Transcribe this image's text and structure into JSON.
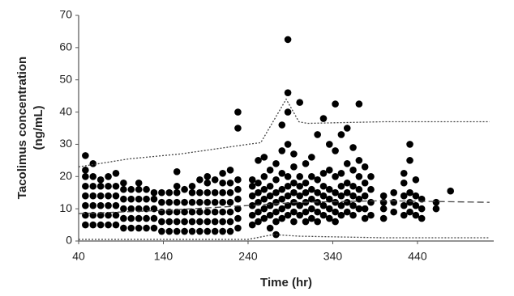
{
  "chart_data": {
    "type": "scatter",
    "xlabel": "Time (hr)",
    "ylabel": [
      "Tacolimus concentration",
      "(ng/mL)"
    ],
    "xlim": [
      40,
      530
    ],
    "ylim": [
      0,
      70
    ],
    "xticks": [
      40,
      140,
      240,
      340,
      440
    ],
    "yticks": [
      0,
      10,
      20,
      30,
      40,
      50,
      60,
      70
    ],
    "color": "#000000",
    "points": [
      {
        "x": 48,
        "y": 5
      },
      {
        "x": 48,
        "y": 8
      },
      {
        "x": 48,
        "y": 11
      },
      {
        "x": 48,
        "y": 14
      },
      {
        "x": 48,
        "y": 17
      },
      {
        "x": 48,
        "y": 20
      },
      {
        "x": 48,
        "y": 22
      },
      {
        "x": 48,
        "y": 26.5
      },
      {
        "x": 57,
        "y": 5
      },
      {
        "x": 57,
        "y": 8
      },
      {
        "x": 57,
        "y": 11
      },
      {
        "x": 57,
        "y": 14
      },
      {
        "x": 57,
        "y": 17
      },
      {
        "x": 57,
        "y": 20
      },
      {
        "x": 57,
        "y": 24
      },
      {
        "x": 66,
        "y": 5
      },
      {
        "x": 66,
        "y": 8
      },
      {
        "x": 66,
        "y": 11
      },
      {
        "x": 66,
        "y": 14
      },
      {
        "x": 66,
        "y": 17
      },
      {
        "x": 66,
        "y": 19
      },
      {
        "x": 75,
        "y": 5
      },
      {
        "x": 75,
        "y": 8
      },
      {
        "x": 75,
        "y": 11
      },
      {
        "x": 75,
        "y": 14
      },
      {
        "x": 75,
        "y": 17
      },
      {
        "x": 75,
        "y": 20
      },
      {
        "x": 84,
        "y": 5
      },
      {
        "x": 84,
        "y": 8
      },
      {
        "x": 84,
        "y": 11
      },
      {
        "x": 84,
        "y": 14
      },
      {
        "x": 84,
        "y": 17
      },
      {
        "x": 84,
        "y": 21
      },
      {
        "x": 93,
        "y": 4
      },
      {
        "x": 93,
        "y": 7
      },
      {
        "x": 93,
        "y": 10
      },
      {
        "x": 93,
        "y": 13
      },
      {
        "x": 93,
        "y": 16
      },
      {
        "x": 93,
        "y": 18
      },
      {
        "x": 102,
        "y": 4
      },
      {
        "x": 102,
        "y": 7
      },
      {
        "x": 102,
        "y": 10
      },
      {
        "x": 102,
        "y": 13
      },
      {
        "x": 102,
        "y": 16
      },
      {
        "x": 111,
        "y": 4
      },
      {
        "x": 111,
        "y": 7
      },
      {
        "x": 111,
        "y": 10
      },
      {
        "x": 111,
        "y": 13
      },
      {
        "x": 111,
        "y": 16
      },
      {
        "x": 111,
        "y": 18
      },
      {
        "x": 120,
        "y": 4
      },
      {
        "x": 120,
        "y": 7
      },
      {
        "x": 120,
        "y": 10
      },
      {
        "x": 120,
        "y": 13
      },
      {
        "x": 120,
        "y": 16
      },
      {
        "x": 129,
        "y": 4
      },
      {
        "x": 129,
        "y": 7
      },
      {
        "x": 129,
        "y": 10
      },
      {
        "x": 129,
        "y": 13
      },
      {
        "x": 129,
        "y": 15
      },
      {
        "x": 138,
        "y": 3
      },
      {
        "x": 138,
        "y": 6
      },
      {
        "x": 138,
        "y": 9
      },
      {
        "x": 138,
        "y": 12
      },
      {
        "x": 138,
        "y": 15
      },
      {
        "x": 147,
        "y": 3
      },
      {
        "x": 147,
        "y": 6
      },
      {
        "x": 147,
        "y": 9
      },
      {
        "x": 147,
        "y": 12
      },
      {
        "x": 147,
        "y": 15
      },
      {
        "x": 156,
        "y": 3
      },
      {
        "x": 156,
        "y": 6
      },
      {
        "x": 156,
        "y": 9
      },
      {
        "x": 156,
        "y": 12
      },
      {
        "x": 156,
        "y": 15
      },
      {
        "x": 156,
        "y": 17
      },
      {
        "x": 156,
        "y": 21.5
      },
      {
        "x": 165,
        "y": 3
      },
      {
        "x": 165,
        "y": 6
      },
      {
        "x": 165,
        "y": 9
      },
      {
        "x": 165,
        "y": 12
      },
      {
        "x": 165,
        "y": 16
      },
      {
        "x": 174,
        "y": 3
      },
      {
        "x": 174,
        "y": 6
      },
      {
        "x": 174,
        "y": 9
      },
      {
        "x": 174,
        "y": 12
      },
      {
        "x": 174,
        "y": 15
      },
      {
        "x": 174,
        "y": 17
      },
      {
        "x": 183,
        "y": 3
      },
      {
        "x": 183,
        "y": 6
      },
      {
        "x": 183,
        "y": 9
      },
      {
        "x": 183,
        "y": 12
      },
      {
        "x": 183,
        "y": 15
      },
      {
        "x": 183,
        "y": 19
      },
      {
        "x": 192,
        "y": 3
      },
      {
        "x": 192,
        "y": 6
      },
      {
        "x": 192,
        "y": 9
      },
      {
        "x": 192,
        "y": 12
      },
      {
        "x": 192,
        "y": 15
      },
      {
        "x": 192,
        "y": 18
      },
      {
        "x": 192,
        "y": 20
      },
      {
        "x": 201,
        "y": 3
      },
      {
        "x": 201,
        "y": 6
      },
      {
        "x": 201,
        "y": 9
      },
      {
        "x": 201,
        "y": 12
      },
      {
        "x": 201,
        "y": 15
      },
      {
        "x": 201,
        "y": 19
      },
      {
        "x": 210,
        "y": 3
      },
      {
        "x": 210,
        "y": 6
      },
      {
        "x": 210,
        "y": 9
      },
      {
        "x": 210,
        "y": 12
      },
      {
        "x": 210,
        "y": 15
      },
      {
        "x": 210,
        "y": 18
      },
      {
        "x": 210,
        "y": 21
      },
      {
        "x": 219,
        "y": 3
      },
      {
        "x": 219,
        "y": 6
      },
      {
        "x": 219,
        "y": 9
      },
      {
        "x": 219,
        "y": 12
      },
      {
        "x": 219,
        "y": 15
      },
      {
        "x": 219,
        "y": 18
      },
      {
        "x": 219,
        "y": 22
      },
      {
        "x": 228,
        "y": 4
      },
      {
        "x": 228,
        "y": 7
      },
      {
        "x": 228,
        "y": 10
      },
      {
        "x": 228,
        "y": 13
      },
      {
        "x": 228,
        "y": 16
      },
      {
        "x": 228,
        "y": 19
      },
      {
        "x": 228,
        "y": 35
      },
      {
        "x": 228,
        "y": 40
      },
      {
        "x": 245,
        "y": 5
      },
      {
        "x": 245,
        "y": 8
      },
      {
        "x": 245,
        "y": 11
      },
      {
        "x": 245,
        "y": 14
      },
      {
        "x": 245,
        "y": 17
      },
      {
        "x": 245,
        "y": 19
      },
      {
        "x": 252,
        "y": 6
      },
      {
        "x": 252,
        "y": 9
      },
      {
        "x": 252,
        "y": 12
      },
      {
        "x": 252,
        "y": 15
      },
      {
        "x": 252,
        "y": 18
      },
      {
        "x": 252,
        "y": 25
      },
      {
        "x": 259,
        "y": 7
      },
      {
        "x": 259,
        "y": 10
      },
      {
        "x": 259,
        "y": 13
      },
      {
        "x": 259,
        "y": 16
      },
      {
        "x": 259,
        "y": 20
      },
      {
        "x": 259,
        "y": 26
      },
      {
        "x": 266,
        "y": 4
      },
      {
        "x": 266,
        "y": 8
      },
      {
        "x": 266,
        "y": 11
      },
      {
        "x": 266,
        "y": 14
      },
      {
        "x": 266,
        "y": 17
      },
      {
        "x": 266,
        "y": 22
      },
      {
        "x": 273,
        "y": 2
      },
      {
        "x": 273,
        "y": 6
      },
      {
        "x": 273,
        "y": 9
      },
      {
        "x": 273,
        "y": 12
      },
      {
        "x": 273,
        "y": 15
      },
      {
        "x": 273,
        "y": 19
      },
      {
        "x": 273,
        "y": 24
      },
      {
        "x": 280,
        "y": 7
      },
      {
        "x": 280,
        "y": 10
      },
      {
        "x": 280,
        "y": 13
      },
      {
        "x": 280,
        "y": 16
      },
      {
        "x": 280,
        "y": 21
      },
      {
        "x": 280,
        "y": 28
      },
      {
        "x": 280,
        "y": 36
      },
      {
        "x": 287,
        "y": 8
      },
      {
        "x": 287,
        "y": 11
      },
      {
        "x": 287,
        "y": 14
      },
      {
        "x": 287,
        "y": 17
      },
      {
        "x": 287,
        "y": 20
      },
      {
        "x": 287,
        "y": 30
      },
      {
        "x": 287,
        "y": 40
      },
      {
        "x": 287,
        "y": 46
      },
      {
        "x": 287,
        "y": 62.5
      },
      {
        "x": 294,
        "y": 6
      },
      {
        "x": 294,
        "y": 9
      },
      {
        "x": 294,
        "y": 12
      },
      {
        "x": 294,
        "y": 15
      },
      {
        "x": 294,
        "y": 18
      },
      {
        "x": 294,
        "y": 23
      },
      {
        "x": 294,
        "y": 27
      },
      {
        "x": 301,
        "y": 8
      },
      {
        "x": 301,
        "y": 11
      },
      {
        "x": 301,
        "y": 14
      },
      {
        "x": 301,
        "y": 17
      },
      {
        "x": 301,
        "y": 20
      },
      {
        "x": 301,
        "y": 43
      },
      {
        "x": 308,
        "y": 6
      },
      {
        "x": 308,
        "y": 9
      },
      {
        "x": 308,
        "y": 12
      },
      {
        "x": 308,
        "y": 15
      },
      {
        "x": 308,
        "y": 18
      },
      {
        "x": 308,
        "y": 24
      },
      {
        "x": 315,
        "y": 7
      },
      {
        "x": 315,
        "y": 10
      },
      {
        "x": 315,
        "y": 13
      },
      {
        "x": 315,
        "y": 16
      },
      {
        "x": 315,
        "y": 20
      },
      {
        "x": 315,
        "y": 26
      },
      {
        "x": 322,
        "y": 6
      },
      {
        "x": 322,
        "y": 9
      },
      {
        "x": 322,
        "y": 12
      },
      {
        "x": 322,
        "y": 15
      },
      {
        "x": 322,
        "y": 19
      },
      {
        "x": 322,
        "y": 33
      },
      {
        "x": 329,
        "y": 8
      },
      {
        "x": 329,
        "y": 11
      },
      {
        "x": 329,
        "y": 14
      },
      {
        "x": 329,
        "y": 17
      },
      {
        "x": 329,
        "y": 21
      },
      {
        "x": 329,
        "y": 38
      },
      {
        "x": 336,
        "y": 7
      },
      {
        "x": 336,
        "y": 10
      },
      {
        "x": 336,
        "y": 13
      },
      {
        "x": 336,
        "y": 16
      },
      {
        "x": 336,
        "y": 22
      },
      {
        "x": 336,
        "y": 30
      },
      {
        "x": 343,
        "y": 6
      },
      {
        "x": 343,
        "y": 9
      },
      {
        "x": 343,
        "y": 12
      },
      {
        "x": 343,
        "y": 15
      },
      {
        "x": 343,
        "y": 20
      },
      {
        "x": 343,
        "y": 28
      },
      {
        "x": 343,
        "y": 42.5
      },
      {
        "x": 350,
        "y": 8
      },
      {
        "x": 350,
        "y": 11
      },
      {
        "x": 350,
        "y": 14
      },
      {
        "x": 350,
        "y": 17
      },
      {
        "x": 350,
        "y": 21
      },
      {
        "x": 350,
        "y": 33
      },
      {
        "x": 357,
        "y": 9
      },
      {
        "x": 357,
        "y": 12
      },
      {
        "x": 357,
        "y": 15
      },
      {
        "x": 357,
        "y": 18
      },
      {
        "x": 357,
        "y": 24
      },
      {
        "x": 357,
        "y": 35
      },
      {
        "x": 364,
        "y": 8
      },
      {
        "x": 364,
        "y": 11
      },
      {
        "x": 364,
        "y": 14
      },
      {
        "x": 364,
        "y": 17
      },
      {
        "x": 364,
        "y": 22
      },
      {
        "x": 364,
        "y": 29
      },
      {
        "x": 371,
        "y": 10
      },
      {
        "x": 371,
        "y": 13
      },
      {
        "x": 371,
        "y": 16
      },
      {
        "x": 371,
        "y": 20
      },
      {
        "x": 371,
        "y": 25
      },
      {
        "x": 371,
        "y": 42.5
      },
      {
        "x": 378,
        "y": 7
      },
      {
        "x": 378,
        "y": 10
      },
      {
        "x": 378,
        "y": 14
      },
      {
        "x": 378,
        "y": 18
      },
      {
        "x": 378,
        "y": 23
      },
      {
        "x": 385,
        "y": 8
      },
      {
        "x": 385,
        "y": 12
      },
      {
        "x": 385,
        "y": 16
      },
      {
        "x": 385,
        "y": 20
      },
      {
        "x": 400,
        "y": 7
      },
      {
        "x": 400,
        "y": 10
      },
      {
        "x": 400,
        "y": 12
      },
      {
        "x": 400,
        "y": 14
      },
      {
        "x": 412,
        "y": 9
      },
      {
        "x": 412,
        "y": 12
      },
      {
        "x": 412,
        "y": 15
      },
      {
        "x": 424,
        "y": 8
      },
      {
        "x": 424,
        "y": 11
      },
      {
        "x": 424,
        "y": 14
      },
      {
        "x": 424,
        "y": 18
      },
      {
        "x": 424,
        "y": 21
      },
      {
        "x": 431,
        "y": 9
      },
      {
        "x": 431,
        "y": 12
      },
      {
        "x": 431,
        "y": 15
      },
      {
        "x": 431,
        "y": 25
      },
      {
        "x": 431,
        "y": 30
      },
      {
        "x": 438,
        "y": 8
      },
      {
        "x": 438,
        "y": 11
      },
      {
        "x": 438,
        "y": 14
      },
      {
        "x": 438,
        "y": 19
      },
      {
        "x": 445,
        "y": 7
      },
      {
        "x": 445,
        "y": 10
      },
      {
        "x": 445,
        "y": 13
      },
      {
        "x": 462,
        "y": 10
      },
      {
        "x": 462,
        "y": 12
      },
      {
        "x": 479,
        "y": 15.5
      }
    ],
    "lines": [
      {
        "style": "dotted",
        "x": [
          40,
          100,
          160,
          200,
          240,
          255,
          285,
          300,
          310,
          400,
          525
        ],
        "values": [
          23,
          25.5,
          27,
          28.5,
          30,
          30.5,
          44,
          37,
          36.5,
          37,
          37
        ]
      },
      {
        "style": "dashed",
        "x": [
          40,
          140,
          240,
          300,
          400,
          525
        ],
        "values": [
          8.5,
          9.5,
          11,
          12,
          12.5,
          12
        ]
      },
      {
        "style": "dotted",
        "x": [
          40,
          240,
          270,
          300,
          400,
          525
        ],
        "values": [
          0.5,
          0.5,
          2,
          1.5,
          1,
          1
        ]
      }
    ]
  }
}
